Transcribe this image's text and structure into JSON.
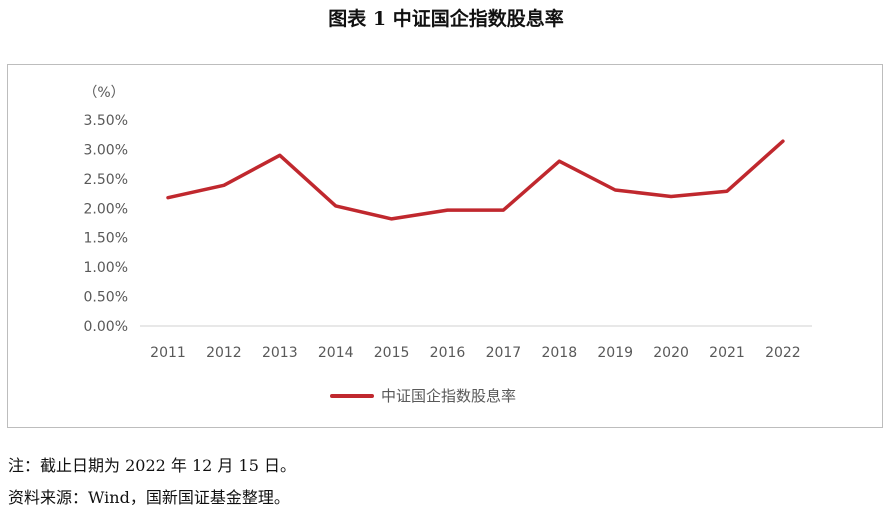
{
  "figure_title": "图表 1  中证国企指数股息率",
  "notes": {
    "note": "注：截止日期为 2022 年 12 月 15 日。",
    "source": "资料来源：Wind，国新国证基金整理。"
  },
  "colors": {
    "series": "#c0282e",
    "axis": "#d9d9d9",
    "text": "#595959"
  },
  "chart_data": {
    "type": "line",
    "title": "",
    "xlabel": "",
    "ylabel": "（%）",
    "x": [
      "2011",
      "2012",
      "2013",
      "2014",
      "2015",
      "2016",
      "2017",
      "2018",
      "2019",
      "2020",
      "2021",
      "2022"
    ],
    "series": [
      {
        "name": "中证国企指数股息率",
        "values": [
          2.18,
          2.39,
          2.9,
          2.04,
          1.82,
          1.97,
          1.97,
          2.8,
          2.31,
          2.2,
          2.29,
          3.14
        ]
      }
    ],
    "ylim": [
      0,
      3.5
    ],
    "yticks": [
      "0.00%",
      "0.50%",
      "1.00%",
      "1.50%",
      "2.00%",
      "2.50%",
      "3.00%",
      "3.50%"
    ],
    "ytick_values": [
      0,
      0.5,
      1.0,
      1.5,
      2.0,
      2.5,
      3.0,
      3.5
    ],
    "grid": false,
    "legend": "bottom"
  }
}
